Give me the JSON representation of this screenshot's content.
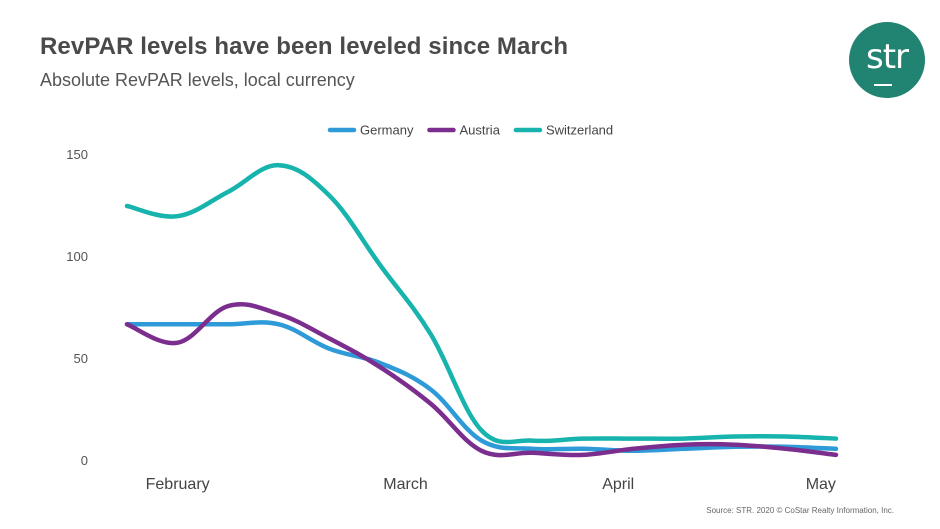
{
  "header": {
    "title": "RevPAR levels have been leveled since March",
    "subtitle": "Absolute RevPAR levels, local currency"
  },
  "logo": {
    "text": "str",
    "color": "#218372"
  },
  "source": "Source: STR. 2020 © CoStar Realty Information, Inc.",
  "chart_data": {
    "type": "line",
    "title": "RevPAR levels have been leveled since March",
    "subtitle": "Absolute RevPAR levels, local currency",
    "xlabel": "",
    "ylabel": "",
    "ylim": [
      0,
      150
    ],
    "yticks": [
      0,
      50,
      100,
      150
    ],
    "grid": false,
    "legend_position": "top-center",
    "x_ticks": [
      {
        "label": "February",
        "x": 1
      },
      {
        "label": "March",
        "x": 5.5
      },
      {
        "label": "April",
        "x": 9.7
      },
      {
        "label": "May",
        "x": 13.7
      }
    ],
    "x": [
      0,
      1,
      2,
      3,
      4,
      5,
      6,
      7,
      8,
      9,
      10,
      11,
      12,
      13,
      14
    ],
    "xlim": [
      0,
      14
    ],
    "series": [
      {
        "name": "Germany",
        "color": "#2f9ad8",
        "values": [
          67,
          67,
          67,
          67,
          55,
          48,
          35,
          10,
          6,
          6,
          5,
          6,
          7,
          7,
          6
        ]
      },
      {
        "name": "Austria",
        "color": "#7b2e8e",
        "values": [
          67,
          58,
          76,
          72,
          60,
          46,
          28,
          5,
          4,
          3,
          6,
          8,
          8,
          6,
          3
        ]
      },
      {
        "name": "Switzerland",
        "color": "#17b3ad",
        "values": [
          125,
          120,
          132,
          145,
          130,
          96,
          62,
          15,
          10,
          11,
          11,
          11,
          12,
          12,
          11
        ]
      }
    ]
  }
}
